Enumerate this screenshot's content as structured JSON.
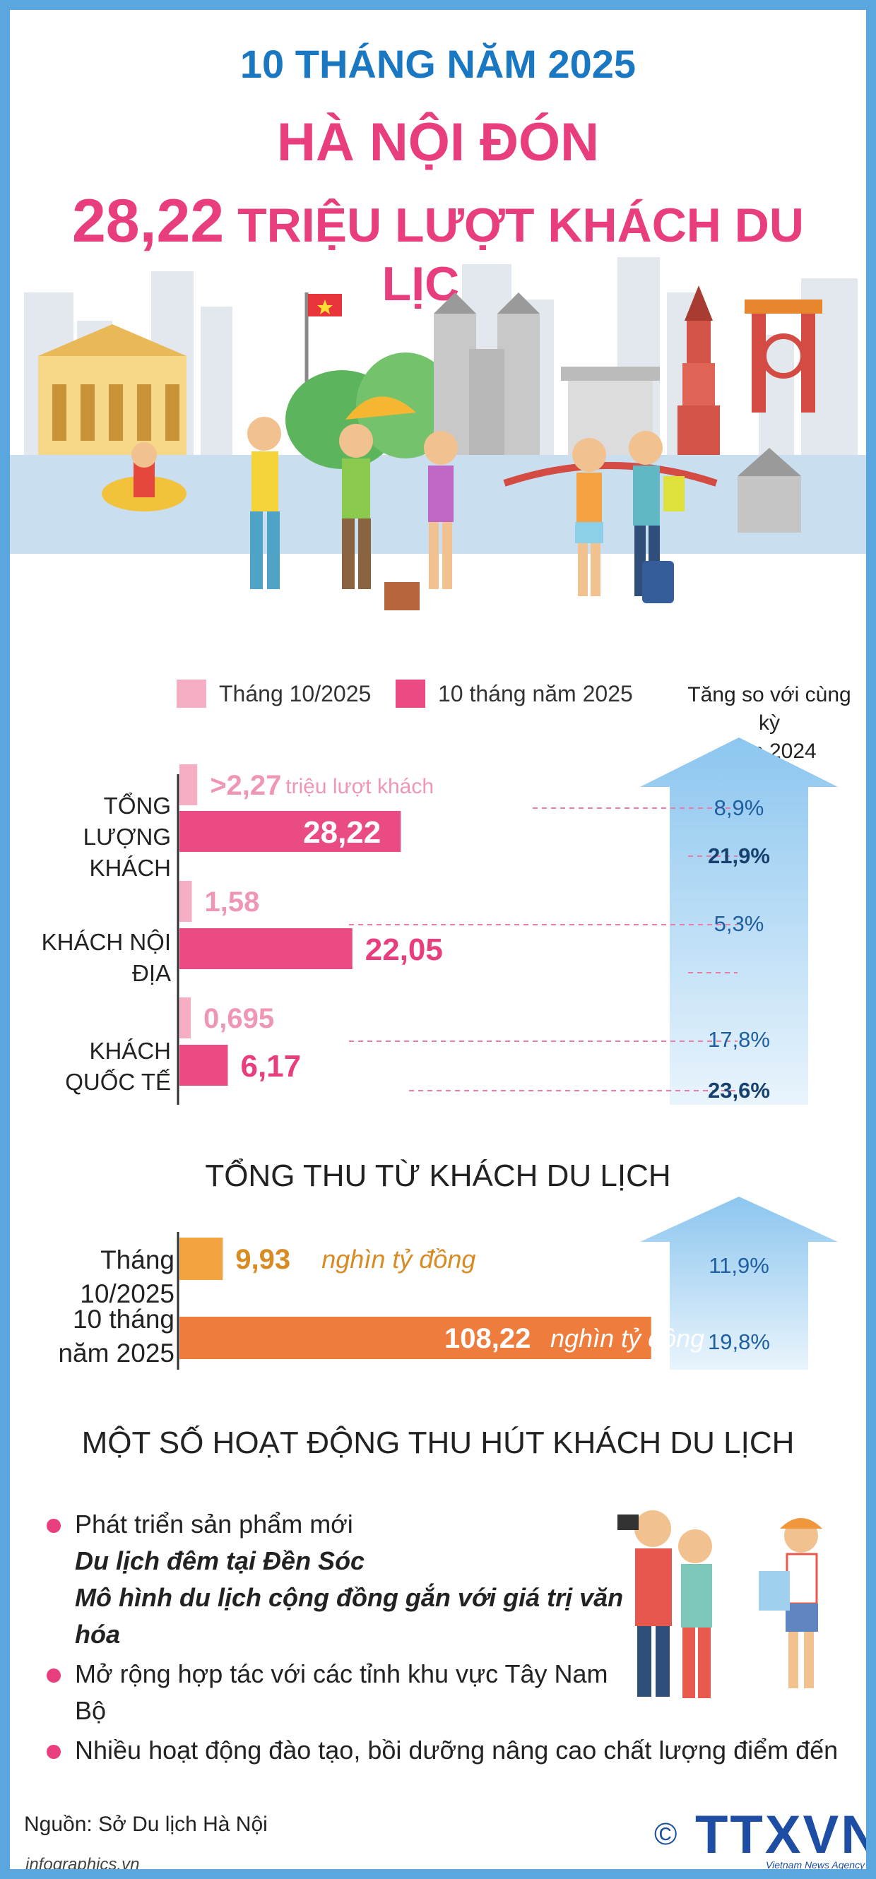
{
  "header": {
    "line1": "10 THÁNG NĂM 2025",
    "line2": "HÀ NỘI ĐÓN",
    "line3_number": "28,22",
    "line3_text": "TRIỆU LƯỢT KHÁCH DU LỊCH"
  },
  "colors": {
    "border": "#5aa7df",
    "title_blue": "#1a78c2",
    "title_pink": "#e83e7d",
    "bar_light_pink": "#f6aec3",
    "bar_pink": "#ea4b84",
    "bar_orange_light": "#f2a23e",
    "bar_orange": "#ee7d3d",
    "arrow_blue": "#8cc6ef"
  },
  "legend": {
    "light": "Tháng 10/2025",
    "dark": "10 tháng năm 2025"
  },
  "growth_header": [
    "Tăng so với cùng kỳ",
    "năm 2024"
  ],
  "chart_data": [
    {
      "type": "bar",
      "orientation": "horizontal",
      "categories": [
        "TỔNG LƯỢNG KHÁCH",
        "KHÁCH NỘI ĐỊA",
        "KHÁCH QUỐC TẾ"
      ],
      "category_lines": [
        [
          "TỔNG",
          "LƯỢNG KHÁCH"
        ],
        [
          "KHÁCH NỘI ĐỊA"
        ],
        [
          "KHÁCH QUỐC TẾ"
        ]
      ],
      "series": [
        {
          "name": "Tháng 10/2025",
          "values": [
            2.27,
            1.58,
            0.695
          ],
          "labels": [
            ">2,27",
            "1,58",
            "0,695"
          ],
          "growth": [
            "8,9%",
            "5,3%",
            "17,8%"
          ]
        },
        {
          "name": "10 tháng năm 2025",
          "values": [
            28.22,
            22.05,
            6.17
          ],
          "labels": [
            "28,22",
            "22,05",
            "6,17"
          ],
          "growth": [
            "21,9%",
            "",
            "23,6%"
          ]
        }
      ],
      "unit_note": "triệu lượt khách"
    },
    {
      "type": "bar",
      "orientation": "horizontal",
      "title": "TỔNG THU TỪ KHÁCH DU LỊCH",
      "categories": [
        "Tháng 10/2025",
        "10 tháng năm 2025"
      ],
      "category_lines": [
        [
          "Tháng 10/2025"
        ],
        [
          "10 tháng",
          "năm 2025"
        ]
      ],
      "values": [
        9.93,
        108.22
      ],
      "labels": [
        "9,93",
        "108,22"
      ],
      "unit": "nghìn tỷ đồng",
      "growth": [
        "11,9%",
        "19,8%"
      ]
    }
  ],
  "activities": {
    "title": "MỘT SỐ HOẠT ĐỘNG THU HÚT KHÁCH DU LỊCH",
    "item1": "Phát triển sản phẩm mới",
    "item1_sub1": "Du lịch đêm tại Đền Sóc",
    "item1_sub2": "Mô hình du lịch cộng đồng gắn với giá trị văn hóa",
    "item2": "Mở rộng hợp tác với các tỉnh khu vực Tây Nam Bộ",
    "item3": "Nhiều hoạt động đào tạo, bồi dưỡng nâng cao chất lượng điểm đến"
  },
  "footer": {
    "source": "Nguồn: Sở Du lịch Hà Nội",
    "website": "infographics.vn",
    "copyright": "©",
    "logo": "TTXVN",
    "logo_sub": "Vietnam News Agency"
  }
}
